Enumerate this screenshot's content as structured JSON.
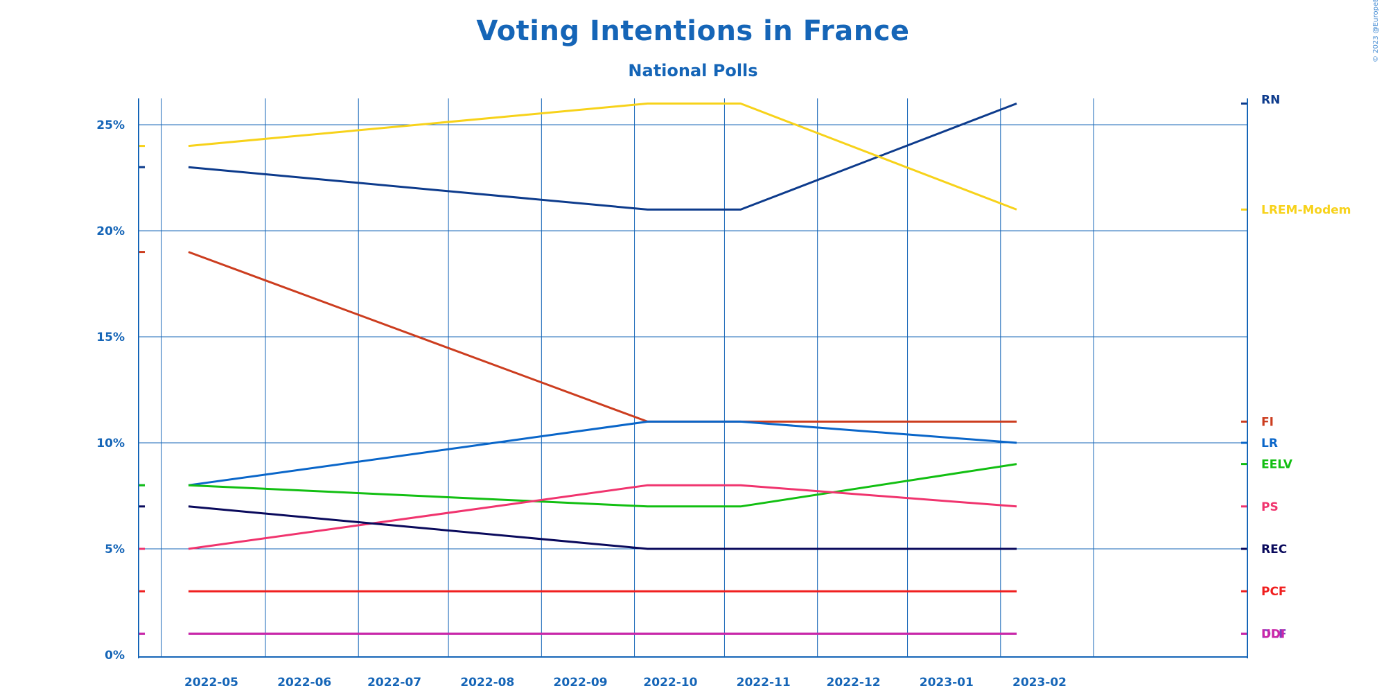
{
  "chart_data": {
    "type": "line",
    "title": "Voting Intentions in France",
    "subtitle": "National Polls",
    "copyright": "© 2023 @EuropeElects",
    "x": [
      "2022-05",
      "2022-10",
      "2022-11",
      "2023-02"
    ],
    "xticks": [
      "2022-05",
      "2022-06",
      "2022-07",
      "2022-08",
      "2022-09",
      "2022-10",
      "2022-11",
      "2022-12",
      "2023-01",
      "2023-02"
    ],
    "ylim": [
      0,
      26
    ],
    "yticks": [
      0,
      5,
      10,
      15,
      20,
      25
    ],
    "ytick_labels": [
      "0%",
      "5%",
      "10%",
      "15%",
      "20%",
      "25%"
    ],
    "grid": true,
    "legend": "right",
    "series": [
      {
        "name": "RN",
        "color": "#0d3b8c",
        "values": [
          23,
          21,
          21,
          26
        ]
      },
      {
        "name": "LREM-Modem",
        "color": "#f7d21a",
        "values": [
          24,
          26,
          26,
          21
        ]
      },
      {
        "name": "FI",
        "color": "#cc3d1f",
        "values": [
          19,
          11,
          11,
          11
        ]
      },
      {
        "name": "LR",
        "color": "#0a66c9",
        "values": [
          8,
          11,
          11,
          10
        ]
      },
      {
        "name": "EELV",
        "color": "#12bf12",
        "values": [
          8,
          7,
          7,
          9
        ]
      },
      {
        "name": "PS",
        "color": "#f0346e",
        "values": [
          5,
          8,
          8,
          7
        ]
      },
      {
        "name": "REC",
        "color": "#0a0a5c",
        "values": [
          7,
          5,
          5,
          5
        ]
      },
      {
        "name": "PCF",
        "color": "#f01e1e",
        "values": [
          3,
          3,
          3,
          3
        ]
      },
      {
        "name": "DLF",
        "color": "#7a3fbf",
        "values": [
          1,
          1,
          1,
          1
        ]
      },
      {
        "name": "UDI",
        "color": "#cc27a8",
        "values": [
          1,
          1,
          1,
          1
        ]
      }
    ]
  }
}
